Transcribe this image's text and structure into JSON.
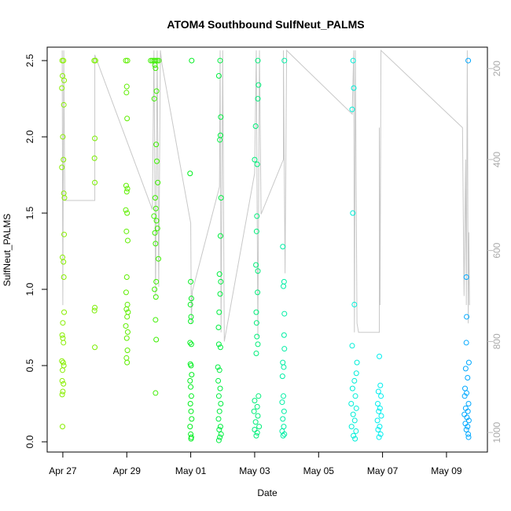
{
  "chart_data": {
    "type": "scatter",
    "title": "ATOM4 Southbound SulfNeut_PALMS",
    "x_label": "Date",
    "y_label": "SulfNeut_PALMS",
    "xlim": [
      26.51,
      40.28
    ],
    "xticks": [
      {
        "value": 27,
        "label": "Apr 27"
      },
      {
        "value": 29,
        "label": "Apr 29"
      },
      {
        "value": 31,
        "label": "May 01"
      },
      {
        "value": 33,
        "label": "May 03"
      },
      {
        "value": 35,
        "label": "May 05"
      },
      {
        "value": 37,
        "label": "May 07"
      },
      {
        "value": 39,
        "label": "May 09"
      }
    ],
    "ylim": [
      -0.067,
      2.588
    ],
    "yticks": [
      {
        "value": 0,
        "label": "0.0"
      },
      0.5,
      {
        "value": 1,
        "label": "1.0"
      },
      1.5,
      {
        "value": 2,
        "label": "2.0"
      },
      2.5
    ],
    "y2lim": [
      1043,
      153
    ],
    "y2ticks": [
      200,
      400,
      600,
      800,
      1000
    ],
    "series": [
      {
        "type": "line",
        "axis": "y2",
        "color": "#c8c8c8",
        "x": [
          26.98,
          27.0,
          27.03,
          27.06,
          28.0,
          28.0,
          29.8,
          29.85,
          29.9,
          29.95,
          30.0,
          30.05,
          30.1,
          31.0,
          31.02,
          31.05,
          31.9,
          31.92,
          31.95,
          32.0,
          32.05,
          33.0,
          33.05,
          33.1,
          33.15,
          33.2,
          33.9,
          33.9,
          33.95,
          34.0,
          36.05,
          36.1,
          36.12,
          36.15,
          36.2,
          36.25,
          36.9,
          36.9,
          36.92,
          36.95,
          39.5,
          39.55,
          39.6,
          39.62,
          39.65,
          39.68,
          39.7,
          39.72
        ],
        "values": [
          160,
          720,
          160,
          490,
          490,
          170,
          510,
          160,
          700,
          160,
          680,
          160,
          190,
          540,
          760,
          690,
          460,
          160,
          780,
          160,
          800,
          430,
          160,
          790,
          160,
          520,
          400,
          160,
          650,
          160,
          300,
          160,
          780,
          160,
          760,
          780,
          780,
          330,
          720,
          160,
          330,
          700,
          400,
          720,
          160,
          760,
          560,
          720
        ]
      },
      {
        "color": "#88ee00",
        "x": [
          26.98,
          27.02,
          26.99,
          27.04,
          26.97,
          27.03,
          27.0,
          27.02,
          26.97,
          27.03,
          27.05,
          27.04,
          26.99,
          27.02,
          27.03,
          27.04,
          27.0,
          26.98,
          27.0,
          27.02,
          26.97,
          27.01,
          27.03,
          26.99,
          26.98,
          27.02,
          27.0,
          26.98,
          26.99
        ],
        "values": [
          2.5,
          2.5,
          2.4,
          2.37,
          2.32,
          2.21,
          2.0,
          1.85,
          1.8,
          1.63,
          1.6,
          1.36,
          1.21,
          1.18,
          1.08,
          0.85,
          0.78,
          0.7,
          0.68,
          0.65,
          0.53,
          0.52,
          0.5,
          0.47,
          0.4,
          0.38,
          0.33,
          0.31,
          0.1
        ]
      },
      {
        "color": "#7aee00",
        "x": [
          27.98,
          28.02,
          28.0,
          27.99,
          28.0,
          28.0,
          27.99,
          28.0
        ],
        "values": [
          2.5,
          2.5,
          1.99,
          1.86,
          1.7,
          0.88,
          0.86,
          0.62
        ]
      },
      {
        "color": "#5eee00",
        "x": [
          28.97,
          29.02,
          29.0,
          28.99,
          29.01,
          28.98,
          29.02,
          29.0,
          28.97,
          29.01,
          28.99,
          29.03,
          29.0,
          28.98,
          29.02,
          28.99,
          29.04,
          29.01,
          28.97,
          29.03,
          29.0,
          29.02,
          28.99,
          29.01
        ],
        "values": [
          2.5,
          2.5,
          2.33,
          2.29,
          2.12,
          1.68,
          1.66,
          1.64,
          1.52,
          1.5,
          1.38,
          1.32,
          1.08,
          0.98,
          0.9,
          0.87,
          0.85,
          0.82,
          0.76,
          0.72,
          0.68,
          0.6,
          0.55,
          0.52
        ]
      },
      {
        "color": "#3cee00",
        "x": [
          29.75,
          29.8,
          29.85,
          29.9,
          29.95,
          30.0,
          29.88,
          29.9,
          29.93,
          29.86,
          29.92,
          29.94,
          29.97,
          29.89,
          29.91,
          29.85,
          29.93,
          29.96,
          29.88,
          29.9,
          29.99,
          29.92,
          29.87,
          29.91,
          29.9,
          29.92,
          29.9
        ],
        "values": [
          2.5,
          2.5,
          2.5,
          2.5,
          2.5,
          2.5,
          2.47,
          2.45,
          2.3,
          2.25,
          1.95,
          1.84,
          1.7,
          1.6,
          1.53,
          1.48,
          1.45,
          1.4,
          1.37,
          1.3,
          1.2,
          1.05,
          1.0,
          0.95,
          0.8,
          0.67,
          0.32
        ]
      },
      {
        "color": "#00ee1e",
        "x": [
          31.03,
          30.98,
          31.0,
          31.02,
          30.99,
          31.01,
          31.0,
          30.98,
          31.02,
          30.99,
          31.01,
          31.03,
          30.98,
          31.0,
          31.02,
          30.99,
          31.01,
          31.03,
          30.98,
          31.0,
          31.02,
          31.01
        ],
        "values": [
          2.5,
          1.76,
          1.05,
          0.94,
          0.9,
          0.82,
          0.79,
          0.65,
          0.64,
          0.51,
          0.5,
          0.44,
          0.4,
          0.36,
          0.3,
          0.25,
          0.2,
          0.15,
          0.1,
          0.05,
          0.03,
          0.02
        ]
      },
      {
        "color": "#00ee40",
        "x": [
          31.92,
          31.88,
          31.94,
          31.93,
          31.91,
          31.95,
          31.93,
          31.9,
          31.94,
          31.92,
          31.89,
          31.87,
          31.88,
          31.93,
          31.85,
          31.9,
          31.86,
          31.92,
          31.88,
          31.94,
          31.9,
          31.87,
          31.93,
          31.89,
          31.95,
          31.91,
          31.88
        ],
        "values": [
          2.5,
          2.4,
          2.13,
          2.01,
          1.98,
          1.6,
          1.35,
          1.1,
          1.05,
          0.97,
          0.85,
          0.75,
          0.64,
          0.62,
          0.49,
          0.47,
          0.4,
          0.35,
          0.3,
          0.25,
          0.2,
          0.15,
          0.1,
          0.08,
          0.05,
          0.03,
          0.01
        ]
      },
      {
        "color": "#00ee7a",
        "x": [
          33.1,
          33.12,
          33.1,
          33.03,
          33.0,
          33.08,
          33.07,
          33.06,
          33.04,
          33.1,
          33.09,
          33.05,
          33.06,
          33.07,
          33.1,
          33.05,
          33.12,
          33.0,
          33.08,
          32.98,
          33.1,
          33.03,
          33.14,
          33.0,
          33.08,
          33.05
        ],
        "values": [
          2.5,
          2.34,
          2.25,
          2.07,
          1.85,
          1.82,
          1.48,
          1.38,
          1.16,
          1.12,
          0.98,
          0.85,
          0.78,
          0.69,
          0.64,
          0.58,
          0.3,
          0.27,
          0.23,
          0.2,
          0.17,
          0.13,
          0.1,
          0.08,
          0.06,
          0.04
        ]
      },
      {
        "color": "#00eea5",
        "x": [
          33.93,
          33.88,
          33.92,
          33.9,
          33.93,
          33.92,
          33.93,
          33.88,
          33.91,
          33.87,
          33.9,
          33.86,
          33.92,
          33.88,
          33.91,
          33.86,
          33.93,
          33.89
        ],
        "values": [
          2.5,
          1.28,
          1.05,
          1.02,
          0.84,
          0.7,
          0.61,
          0.52,
          0.49,
          0.43,
          0.3,
          0.26,
          0.2,
          0.15,
          0.1,
          0.07,
          0.05,
          0.04
        ]
      },
      {
        "color": "#00eed8",
        "x": [
          36.08,
          36.1,
          36.05,
          36.07,
          36.12,
          36.05,
          36.2,
          36.18,
          36.12,
          36.06,
          36.15,
          36.02,
          36.18,
          36.08,
          36.13,
          36.03,
          36.17,
          36.09,
          36.14
        ],
        "values": [
          2.5,
          2.32,
          2.18,
          1.5,
          0.9,
          0.63,
          0.52,
          0.45,
          0.4,
          0.35,
          0.3,
          0.25,
          0.22,
          0.18,
          0.14,
          0.1,
          0.07,
          0.04,
          0.02
        ]
      },
      {
        "color": "#00eeee",
        "x": [
          36.9,
          36.93,
          36.87,
          36.95,
          36.85,
          36.92,
          36.88,
          36.96,
          36.84,
          36.91,
          36.86,
          36.94,
          36.89
        ],
        "values": [
          0.56,
          0.37,
          0.33,
          0.3,
          0.25,
          0.22,
          0.2,
          0.17,
          0.14,
          0.1,
          0.08,
          0.05,
          0.03
        ]
      },
      {
        "color": "#00a8ff",
        "x": [
          39.68,
          39.62,
          39.63,
          39.62,
          39.7,
          39.6,
          39.66,
          39.58,
          39.63,
          39.57,
          39.69,
          39.6,
          39.67,
          39.56,
          39.64,
          39.7,
          39.59,
          39.66,
          39.62,
          39.68,
          39.69
        ],
        "values": [
          2.5,
          1.08,
          0.82,
          0.65,
          0.52,
          0.48,
          0.42,
          0.35,
          0.32,
          0.3,
          0.25,
          0.22,
          0.2,
          0.18,
          0.16,
          0.14,
          0.12,
          0.1,
          0.08,
          0.05,
          0.03
        ]
      }
    ]
  }
}
